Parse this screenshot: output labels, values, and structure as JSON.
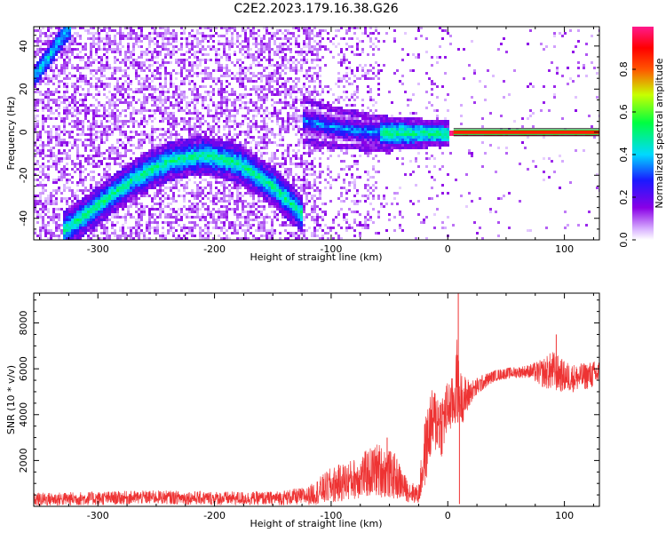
{
  "title": "C2E2.2023.179.16.38.G26",
  "chart_data": [
    {
      "type": "heatmap",
      "xlabel": "Height of straight line (km)",
      "ylabel": "Frequency (Hz)",
      "xlim": [
        -355,
        130
      ],
      "ylim": [
        -50,
        49
      ],
      "xticks": [
        -300,
        -200,
        -100,
        0,
        100
      ],
      "yticks": [
        -40,
        -20,
        0,
        20,
        40
      ],
      "grid": false,
      "colorbar": {
        "label": "Normalized spectral amplitude",
        "range": [
          0.0,
          1.0
        ],
        "ticks": [
          0.0,
          0.2,
          0.4,
          0.6,
          0.8
        ],
        "colormap": "purple-blue-cyan-green-yellow-red-magenta"
      },
      "features": [
        {
          "name": "ridge",
          "x": [
            -330,
            -300,
            -270,
            -240,
            -210,
            -180,
            -150,
            -125
          ],
          "y": [
            -45,
            -33,
            -21,
            -13,
            -10,
            -14,
            -25,
            -38
          ]
        },
        {
          "name": "upper-track",
          "x": [
            -355,
            -345,
            -335,
            -325
          ],
          "y": [
            27,
            34,
            42,
            49
          ]
        },
        {
          "name": "converging-band",
          "x": [
            -125,
            -100,
            -75,
            -50,
            -25,
            0,
            130
          ],
          "y": [
            6,
            3,
            1,
            0,
            0,
            0,
            0
          ]
        }
      ]
    },
    {
      "type": "line",
      "xlabel": "Height of straight line (km)",
      "ylabel": "SNR (10 * v/v)",
      "xlim": [
        -355,
        130
      ],
      "ylim": [
        0,
        9300
      ],
      "xticks": [
        -300,
        -200,
        -100,
        0,
        100
      ],
      "yticks": [
        2000,
        4000,
        6000,
        8000
      ],
      "grid": false,
      "series_color": "#ee3333",
      "x": [
        -355,
        -300,
        -250,
        -200,
        -150,
        -120,
        -100,
        -80,
        -60,
        -45,
        -35,
        -25,
        -20,
        -15,
        -10,
        -5,
        0,
        5,
        8,
        10,
        15,
        20,
        30,
        40,
        50,
        60,
        70,
        80,
        90,
        100,
        110,
        120,
        130
      ],
      "y": [
        300,
        350,
        400,
        350,
        350,
        450,
        900,
        1200,
        1600,
        1300,
        700,
        500,
        2200,
        3500,
        3800,
        3600,
        4300,
        4500,
        5500,
        4800,
        4700,
        5000,
        5400,
        5700,
        5800,
        5850,
        5900,
        5800,
        5900,
        5650,
        5600,
        5700,
        5800
      ],
      "noise": [
        300,
        300,
        300,
        300,
        300,
        400,
        800,
        900,
        1200,
        1000,
        500,
        400,
        1500,
        1500,
        1500,
        1500,
        1200,
        1200,
        2000,
        1200,
        1000,
        500,
        350,
        250,
        250,
        250,
        300,
        600,
        900,
        700,
        600,
        600,
        600
      ],
      "spikes": [
        {
          "x": 9,
          "y": 9300
        },
        {
          "x": 10,
          "y": 100
        },
        {
          "x": 93,
          "y": 7500
        },
        {
          "x": -52,
          "y": 3000
        }
      ]
    }
  ]
}
